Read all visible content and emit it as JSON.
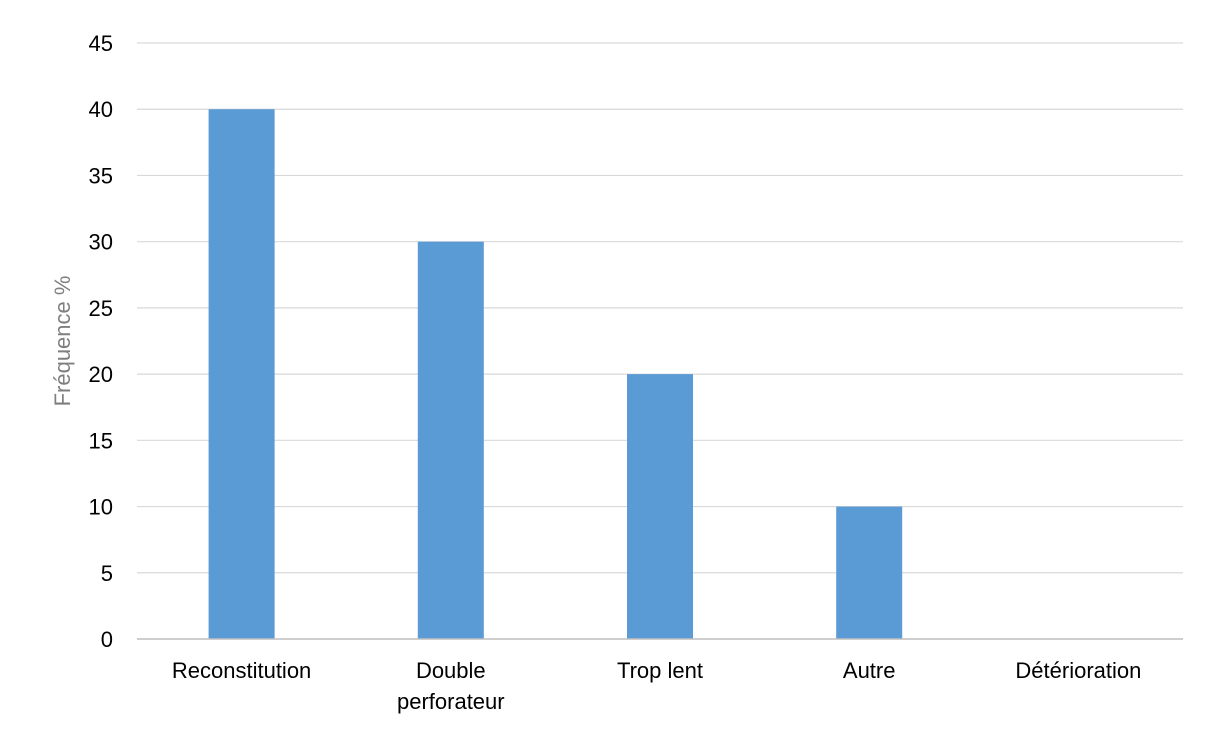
{
  "chart_data": {
    "type": "bar",
    "title": "",
    "xlabel": "",
    "ylabel": "Fréquence %",
    "categories": [
      [
        "Reconstitution"
      ],
      [
        "Double",
        "perforateur"
      ],
      [
        "Trop lent"
      ],
      [
        "Autre"
      ],
      [
        "Détérioration"
      ]
    ],
    "values": [
      40,
      30,
      20,
      10,
      0
    ],
    "ylim": [
      0,
      45
    ],
    "yticks": [
      0,
      5,
      10,
      15,
      20,
      25,
      30,
      35,
      40,
      45
    ],
    "grid": true,
    "legend": "none",
    "colors": {
      "bar": "#5b9bd5",
      "grid": "#d9d9d9",
      "axis": "#bfbfbf",
      "tick_text": "#000000",
      "ylabel_text": "#7f7f7f"
    }
  }
}
